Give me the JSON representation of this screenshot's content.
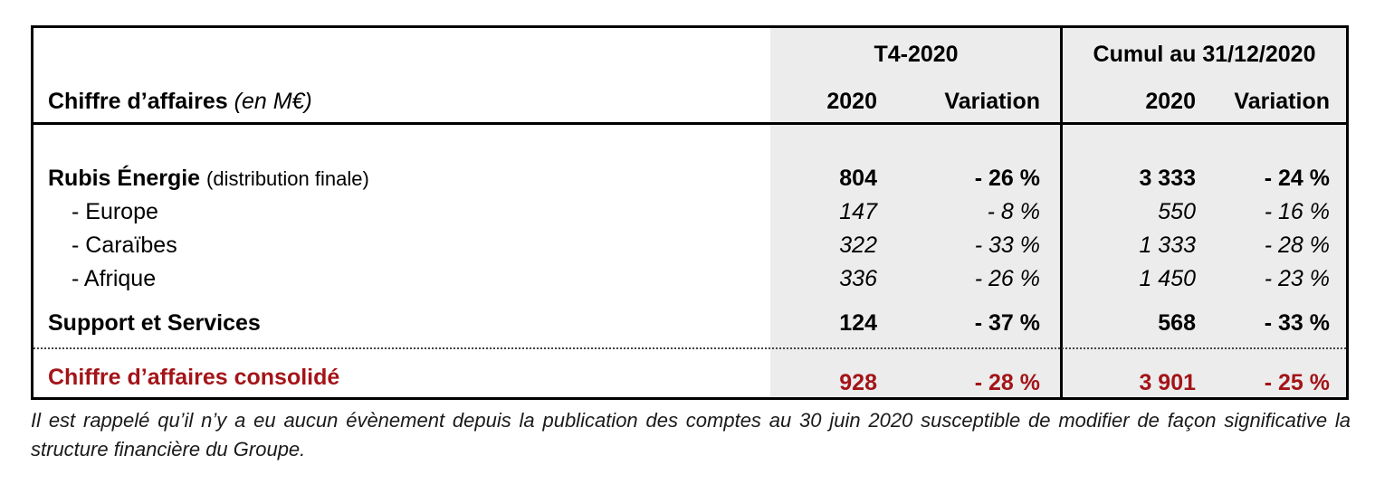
{
  "table": {
    "header": {
      "label": "Chiffre d’affaires",
      "unit": "(en M€)",
      "group_t4": "T4-2020",
      "group_cumul": "Cumul au 31/12/2020",
      "col_year": "2020",
      "col_variation": "Variation"
    },
    "rows": [
      {
        "label": "Rubis Énergie",
        "sublabel": "(distribution finale)",
        "t4_2020": "804",
        "t4_var": "- 26 %",
        "cum_2020": "3 333",
        "cum_var": "- 24 %"
      },
      {
        "label": "-  Europe",
        "t4_2020": "147",
        "t4_var": "- 8 %",
        "cum_2020": "550",
        "cum_var": "- 16 %"
      },
      {
        "label": "-  Caraïbes",
        "t4_2020": "322",
        "t4_var": "- 33 %",
        "cum_2020": "1 333",
        "cum_var": "- 28 %"
      },
      {
        "label": "-  Afrique",
        "t4_2020": "336",
        "t4_var": "- 26 %",
        "cum_2020": "1 450",
        "cum_var": "- 23 %"
      },
      {
        "label": "Support et Services",
        "t4_2020": "124",
        "t4_var": "- 37 %",
        "cum_2020": "568",
        "cum_var": "- 33 %"
      },
      {
        "label": "Chiffre d’affaires consolidé",
        "t4_2020": "928",
        "t4_var": "- 28 %",
        "cum_2020": "3 901",
        "cum_var": "- 25 %"
      }
    ]
  },
  "footnote": "Il est rappelé qu’il n’y a eu aucun évènement depuis la publication des comptes au 30 juin 2020 susceptible de modifier de façon significative la structure financière du Groupe.",
  "colors": {
    "total_row": "#a31418",
    "shaded_columns": "#ececec"
  }
}
